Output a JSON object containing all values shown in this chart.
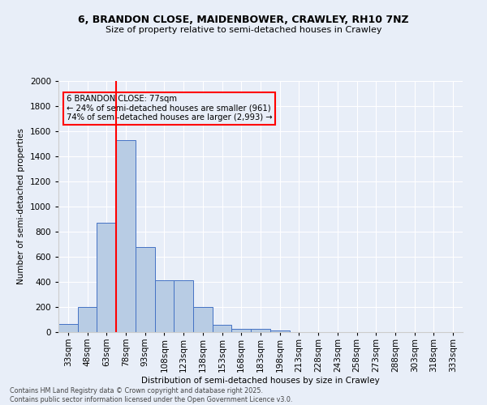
{
  "title1": "6, BRANDON CLOSE, MAIDENBOWER, CRAWLEY, RH10 7NZ",
  "title2": "Size of property relative to semi-detached houses in Crawley",
  "xlabel": "Distribution of semi-detached houses by size in Crawley",
  "ylabel": "Number of semi-detached properties",
  "categories": [
    "33sqm",
    "48sqm",
    "63sqm",
    "78sqm",
    "93sqm",
    "108sqm",
    "123sqm",
    "138sqm",
    "153sqm",
    "168sqm",
    "183sqm",
    "198sqm",
    "213sqm",
    "228sqm",
    "243sqm",
    "258sqm",
    "273sqm",
    "288sqm",
    "303sqm",
    "318sqm",
    "333sqm"
  ],
  "values": [
    65,
    200,
    870,
    1530,
    680,
    415,
    415,
    200,
    55,
    25,
    25,
    15,
    0,
    0,
    0,
    0,
    0,
    0,
    0,
    0,
    0
  ],
  "bar_color": "#b8cce4",
  "bar_edge_color": "#4472c4",
  "vline_color": "red",
  "vline_x": 2.5,
  "annotation_title": "6 BRANDON CLOSE: 77sqm",
  "annotation_line1": "← 24% of semi-detached houses are smaller (961)",
  "annotation_line2": "74% of semi-detached houses are larger (2,993) →",
  "annotation_box_color": "red",
  "ylim": [
    0,
    2000
  ],
  "yticks": [
    0,
    200,
    400,
    600,
    800,
    1000,
    1200,
    1400,
    1600,
    1800,
    2000
  ],
  "footer1": "Contains HM Land Registry data © Crown copyright and database right 2025.",
  "footer2": "Contains public sector information licensed under the Open Government Licence v3.0.",
  "bg_color": "#e8eef8",
  "title1_fontsize": 9,
  "title2_fontsize": 8
}
